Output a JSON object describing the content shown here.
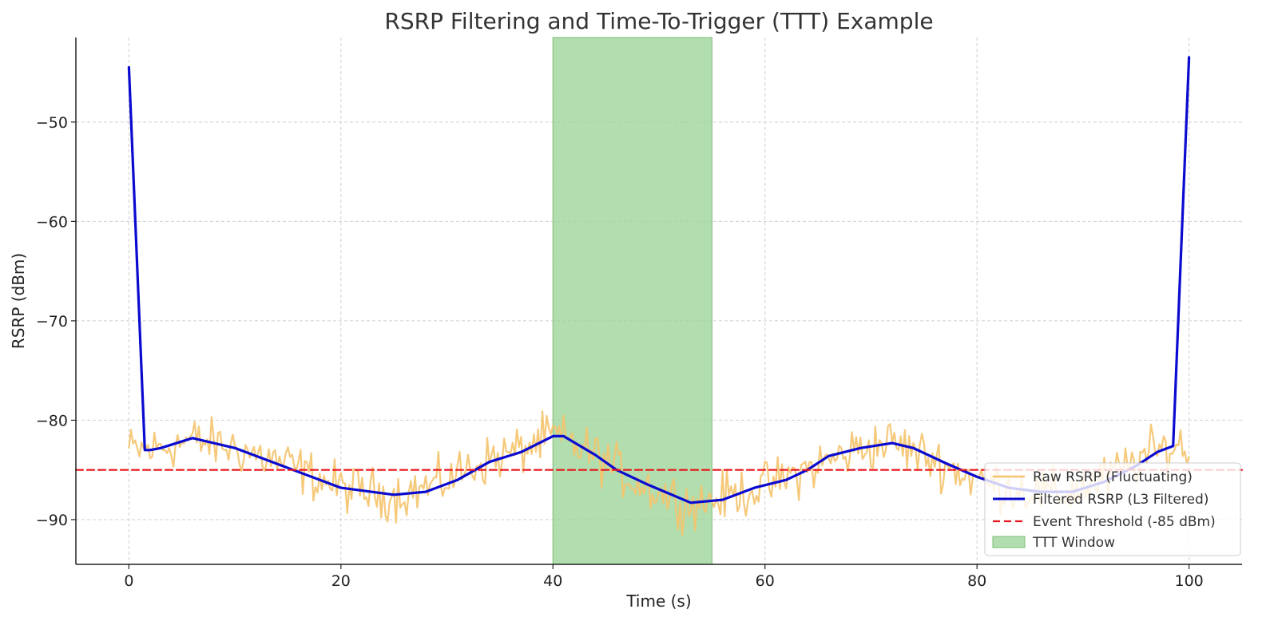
{
  "chart_data": {
    "type": "line",
    "title": "RSRP Filtering and Time-To-Trigger (TTT) Example",
    "xlabel": "Time (s)",
    "ylabel": "RSRP (dBm)",
    "xlim": [
      -5,
      105
    ],
    "ylim": [
      -94.5,
      -41.5
    ],
    "x_ticks": [
      0,
      20,
      40,
      60,
      80,
      100
    ],
    "x_tick_labels": [
      "0",
      "20",
      "40",
      "60",
      "80",
      "100"
    ],
    "y_ticks": [
      -90,
      -80,
      -70,
      -60,
      -50
    ],
    "y_tick_labels": [
      "−90",
      "−80",
      "−70",
      "−60",
      "−50"
    ],
    "grid": true,
    "legend_position": "lower-right",
    "series": [
      {
        "name": "Raw RSRP (Fluctuating)",
        "color": "#f5c36b",
        "style": "solid",
        "trend": {
          "x": [
            0,
            2,
            6,
            10,
            15,
            20,
            25,
            29,
            33,
            37,
            40,
            44,
            48,
            53,
            57,
            61,
            65,
            69,
            72,
            76,
            80,
            84,
            88,
            92,
            96,
            99,
            100
          ],
          "y": [
            -83,
            -83,
            -82,
            -82.8,
            -84.5,
            -86.8,
            -87.6,
            -86.5,
            -84.3,
            -83,
            -81.5,
            -83.5,
            -86.3,
            -88.5,
            -87.5,
            -86.3,
            -84.5,
            -82.8,
            -82.2,
            -84,
            -86,
            -87,
            -87.5,
            -86,
            -83.5,
            -82.5,
            -83
          ]
        },
        "noise_amplitude_dBm": 2
      },
      {
        "name": "Filtered RSRP (L3 Filtered)",
        "color": "#0a0ad0",
        "style": "solid",
        "x": [
          0,
          1.5,
          2,
          3,
          6,
          10,
          15,
          20,
          25,
          28,
          31,
          34,
          37,
          40,
          41,
          44,
          46,
          49,
          53,
          56,
          59,
          62,
          64,
          66,
          69,
          72,
          74,
          77,
          80,
          83,
          86,
          89,
          92,
          95,
          97,
          98.5,
          100
        ],
        "y": [
          -44.5,
          -83,
          -83,
          -82.8,
          -81.8,
          -82.8,
          -84.8,
          -86.8,
          -87.5,
          -87.2,
          -86,
          -84.2,
          -83.2,
          -81.6,
          -81.6,
          -83.5,
          -85,
          -86.5,
          -88.3,
          -88,
          -86.8,
          -86,
          -85,
          -83.6,
          -82.8,
          -82.3,
          -82.8,
          -84.3,
          -85.7,
          -86.8,
          -87.2,
          -87.2,
          -86.2,
          -84.6,
          -83.2,
          -82.6,
          -43.5
        ]
      },
      {
        "name": "Event Threshold (-85 dBm)",
        "color": "#e8141c",
        "style": "dashed",
        "x": [
          -5,
          105
        ],
        "y": [
          -85,
          -85
        ]
      }
    ],
    "shaded_regions": [
      {
        "name": "TTT Window",
        "x_start": 40,
        "x_end": 55,
        "color": "#9fd49a"
      }
    ],
    "legend": [
      "Raw RSRP (Fluctuating)",
      "Filtered RSRP (L3 Filtered)",
      "Event Threshold (-85 dBm)",
      "TTT Window"
    ]
  }
}
